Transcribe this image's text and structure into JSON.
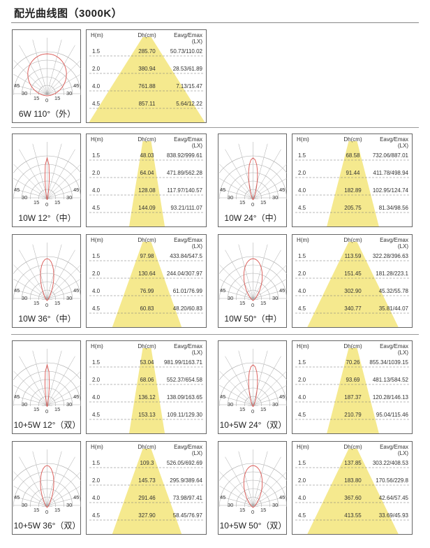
{
  "title": "配光曲线图（3000K）",
  "header": {
    "h": "H(m)",
    "dh": "Dh(cm)",
    "eavg": "Eavg/Emax",
    "lx": "(LX)"
  },
  "angle_labels": {
    "a0": "0",
    "a15": "15",
    "a30": "30",
    "a45": "45"
  },
  "heights": [
    "1.5",
    "2.0",
    "4.0",
    "4.5"
  ],
  "colors": {
    "cone": "#f5e98e",
    "curve": "#d9534f",
    "grid": "#aaa",
    "border": "#666"
  },
  "panels": [
    {
      "label": "6W 110°（外）",
      "beam_deg": 110,
      "dh": [
        "285.70",
        "380.94",
        "761.88",
        "857.11"
      ],
      "e": [
        "50.73/110.02",
        "28.53/61.89",
        "7.13/15.47",
        "5.64/12.22"
      ]
    },
    {
      "label": "10W 12°（中）",
      "beam_deg": 12,
      "dh": [
        "48.03",
        "64.04",
        "128.08",
        "144.09"
      ],
      "e": [
        "838.92/999.61",
        "471.89/562.28",
        "117.97/140.57",
        "93.21/111.07"
      ]
    },
    {
      "label": "10W 24°（中）",
      "beam_deg": 24,
      "dh": [
        "68.58",
        "91.44",
        "182.89",
        "205.75"
      ],
      "e": [
        "732.06/887.01",
        "411.78/498.94",
        "102.95/124.74",
        "81.34/98.56"
      ]
    },
    {
      "label": "10W 36°（中）",
      "beam_deg": 36,
      "dh": [
        "97.98",
        "130.64",
        "76.99",
        "60.83"
      ],
      "e": [
        "433.84/547.5",
        "244.04/307.97",
        "61.01/76.99",
        "48.20/60.83"
      ]
    },
    {
      "label": "10W 50°（中）",
      "beam_deg": 50,
      "dh": [
        "113.59",
        "151.45",
        "302.90",
        "340.77"
      ],
      "e": [
        "322.28/396.63",
        "181.28/223.1",
        "45.32/55.78",
        "35.81/44.07"
      ]
    },
    {
      "label": "10+5W 12°（双）",
      "beam_deg": 12,
      "dh": [
        "53.04",
        "68.06",
        "136.12",
        "153.13"
      ],
      "e": [
        "981.99/1163.71",
        "552.37/654.58",
        "138.09/163.65",
        "109.11/129.30"
      ]
    },
    {
      "label": "10+5W 24°（双）",
      "beam_deg": 24,
      "dh": [
        "70.26",
        "93.69",
        "187.37",
        "210.79"
      ],
      "e": [
        "855.34/1039.15",
        "481.13/584.52",
        "120.28/146.13",
        "95.04/115.46"
      ]
    },
    {
      "label": "10+5W 36°（双）",
      "beam_deg": 36,
      "dh": [
        "109.3",
        "145.73",
        "291.46",
        "327.90"
      ],
      "e": [
        "526.05/692.69",
        "295.9/389.64",
        "73.98/97.41",
        "58.45/76.97"
      ]
    },
    {
      "label": "10+5W 50°（双）",
      "beam_deg": 50,
      "dh": [
        "137.85",
        "183.80",
        "367.60",
        "413.55"
      ],
      "e": [
        "303.22/408.53",
        "170.56/229.8",
        "42.64/57.45",
        "33.69/45.93"
      ]
    }
  ]
}
